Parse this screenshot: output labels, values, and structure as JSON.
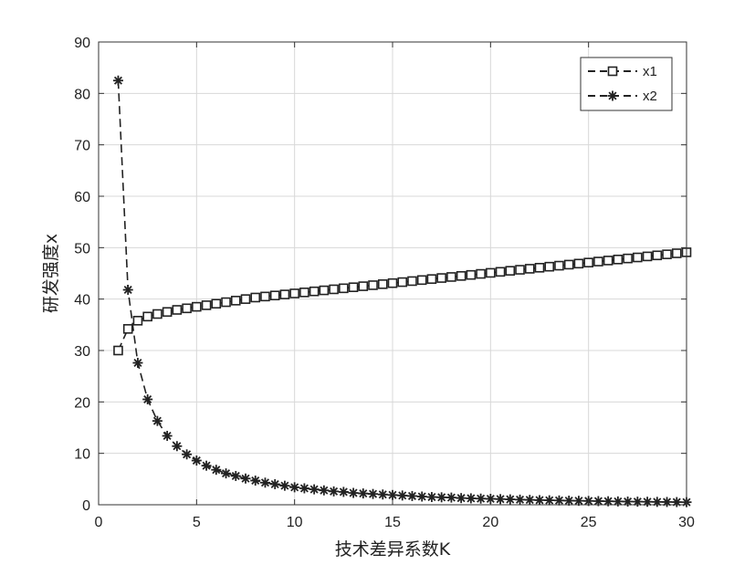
{
  "chart_data": {
    "type": "line",
    "xlabel": "技术差异系数K",
    "ylabel": "研发强度x",
    "xlim": [
      0,
      30
    ],
    "ylim": [
      0,
      90
    ],
    "xticks": [
      0,
      5,
      10,
      15,
      20,
      25,
      30
    ],
    "yticks": [
      0,
      10,
      20,
      30,
      40,
      50,
      60,
      70,
      80,
      90
    ],
    "grid": true,
    "legend_position": "top-right",
    "series": [
      {
        "name": "x1",
        "marker": "square",
        "line_style": "dashed",
        "color": "#222222",
        "x": [
          1,
          1.5,
          2,
          2.5,
          3,
          3.5,
          4,
          4.5,
          5,
          5.5,
          6,
          6.5,
          7,
          7.5,
          8,
          8.5,
          9,
          9.5,
          10,
          10.5,
          11,
          11.5,
          12,
          12.5,
          13,
          13.5,
          14,
          14.5,
          15,
          15.5,
          16,
          16.5,
          17,
          17.5,
          18,
          18.5,
          19,
          19.5,
          20,
          20.5,
          21,
          21.5,
          22,
          22.5,
          23,
          23.5,
          24,
          24.5,
          25,
          25.5,
          26,
          26.5,
          27,
          27.5,
          28,
          28.5,
          29,
          29.5,
          30
        ],
        "y": [
          30.0,
          34.2,
          35.8,
          36.6,
          37.1,
          37.5,
          37.9,
          38.2,
          38.5,
          38.8,
          39.1,
          39.4,
          39.7,
          40.0,
          40.3,
          40.5,
          40.7,
          40.9,
          41.1,
          41.3,
          41.5,
          41.7,
          41.9,
          42.1,
          42.3,
          42.5,
          42.7,
          42.9,
          43.1,
          43.3,
          43.5,
          43.7,
          43.9,
          44.1,
          44.3,
          44.5,
          44.7,
          44.9,
          45.1,
          45.3,
          45.5,
          45.7,
          45.9,
          46.1,
          46.3,
          46.5,
          46.7,
          46.9,
          47.1,
          47.3,
          47.5,
          47.7,
          47.9,
          48.1,
          48.3,
          48.5,
          48.7,
          48.9,
          49.1
        ]
      },
      {
        "name": "x2",
        "marker": "asterisk",
        "line_style": "dashed",
        "color": "#222222",
        "x": [
          1,
          1.5,
          2,
          2.5,
          3,
          3.5,
          4,
          4.5,
          5,
          5.5,
          6,
          6.5,
          7,
          7.5,
          8,
          8.5,
          9,
          9.5,
          10,
          10.5,
          11,
          11.5,
          12,
          12.5,
          13,
          13.5,
          14,
          14.5,
          15,
          15.5,
          16,
          16.5,
          17,
          17.5,
          18,
          18.5,
          19,
          19.5,
          20,
          20.5,
          21,
          21.5,
          22,
          22.5,
          23,
          23.5,
          24,
          24.5,
          25,
          25.5,
          26,
          26.5,
          27,
          27.5,
          28,
          28.5,
          29,
          29.5,
          30
        ],
        "y": [
          82.5,
          41.8,
          27.6,
          20.5,
          16.3,
          13.4,
          11.4,
          9.8,
          8.6,
          7.6,
          6.8,
          6.1,
          5.6,
          5.1,
          4.7,
          4.3,
          4.0,
          3.7,
          3.4,
          3.2,
          3.0,
          2.8,
          2.6,
          2.5,
          2.3,
          2.2,
          2.1,
          2.0,
          1.9,
          1.8,
          1.7,
          1.6,
          1.5,
          1.45,
          1.4,
          1.3,
          1.25,
          1.2,
          1.15,
          1.1,
          1.05,
          1.0,
          0.95,
          0.9,
          0.87,
          0.84,
          0.8,
          0.77,
          0.74,
          0.71,
          0.68,
          0.65,
          0.62,
          0.6,
          0.58,
          0.56,
          0.54,
          0.52,
          0.5
        ]
      }
    ]
  }
}
